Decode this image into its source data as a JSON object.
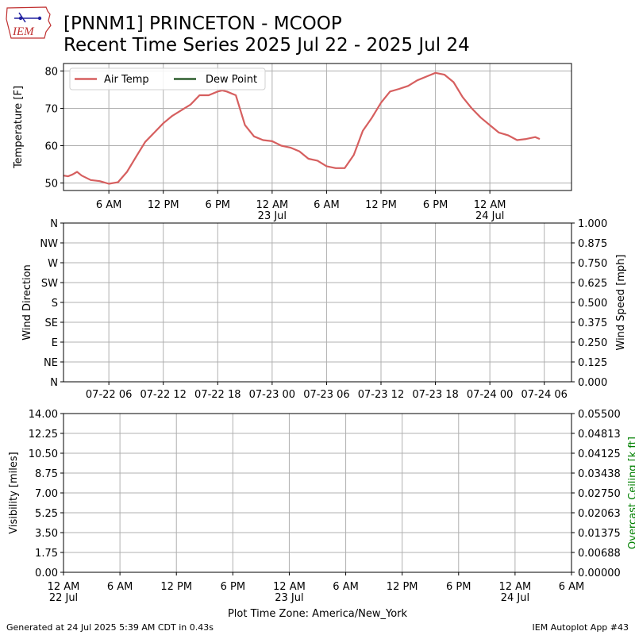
{
  "header": {
    "title_line1": "[PNNM1] PRINCETON - MCOOP",
    "title_line2": "Recent Time Series 2025 Jul 22 - 2025 Jul 24",
    "logo_text": "IEM"
  },
  "footer": {
    "generated": "Generated at 24 Jul 2025 5:39 AM CDT in 0.43s",
    "app": "IEM Autoplot App #43",
    "timezone_label": "Plot Time Zone: America/New_York"
  },
  "colors": {
    "air_temp": "#d65f5f",
    "dew_point": "#2e5e2e",
    "ceiling_axis": "#008000",
    "grid": "#b0b0b0"
  },
  "chart_data": [
    {
      "type": "line",
      "ylabel": "Temperature [F]",
      "ylim": [
        48,
        82
      ],
      "yticks": [
        50,
        60,
        70,
        80
      ],
      "grid": true,
      "legend": "top-left",
      "legend_entries": [
        "Air Temp",
        "Dew Point"
      ],
      "xticks": [
        {
          "hour": 6,
          "label": "6 AM",
          "sub": ""
        },
        {
          "hour": 12,
          "label": "12 PM",
          "sub": ""
        },
        {
          "hour": 18,
          "label": "6 PM",
          "sub": ""
        },
        {
          "hour": 24,
          "label": "12 AM",
          "sub": "23 Jul"
        },
        {
          "hour": 30,
          "label": "6 AM",
          "sub": ""
        },
        {
          "hour": 36,
          "label": "12 PM",
          "sub": ""
        },
        {
          "hour": 42,
          "label": "6 PM",
          "sub": ""
        },
        {
          "hour": 48,
          "label": "12 AM",
          "sub": "24 Jul"
        }
      ],
      "series": [
        {
          "name": "Air Temp",
          "x_hours": [
            1.0,
            1.5,
            2.0,
            2.5,
            3.0,
            4.0,
            5.0,
            6.0,
            7.0,
            8.0,
            9.0,
            10.0,
            11.0,
            12.0,
            13.0,
            14.0,
            15.0,
            16.0,
            17.0,
            18.0,
            18.5,
            19.0,
            20.0,
            21.0,
            22.0,
            23.0,
            24.0,
            25.0,
            26.0,
            27.0,
            28.0,
            29.0,
            30.0,
            31.0,
            32.0,
            33.0,
            34.0,
            35.0,
            36.0,
            37.0,
            38.0,
            39.0,
            40.0,
            41.0,
            42.0,
            43.0,
            44.0,
            45.0,
            46.0,
            47.0,
            48.0,
            49.0,
            50.0,
            51.0,
            52.0,
            53.0,
            53.5
          ],
          "values": [
            52,
            51.8,
            52.3,
            53,
            52,
            50.8,
            50.5,
            49.8,
            50.2,
            53,
            57,
            61,
            63.5,
            66,
            68,
            69.5,
            71,
            73.5,
            73.5,
            74.5,
            74.8,
            74.5,
            73.5,
            65.5,
            62.5,
            61.5,
            61.2,
            60,
            59.5,
            58.5,
            56.5,
            56,
            54.5,
            54,
            54,
            57.5,
            64,
            67.5,
            71.5,
            74.5,
            75.2,
            76,
            77.5,
            78.5,
            79.5,
            79,
            77,
            73,
            70,
            67.5,
            65.5,
            63.5,
            62.8,
            61.5,
            61.8,
            62.3,
            61.8
          ]
        },
        {
          "name": "Dew Point",
          "x_hours": [],
          "values": []
        }
      ]
    },
    {
      "type": "scatter",
      "ylabel": "Wind Direction",
      "ylabel_right": "Wind Speed [mph]",
      "ylim": [
        0,
        360
      ],
      "ylim_right": [
        0,
        1
      ],
      "yticks_left": [
        "N",
        "NE",
        "E",
        "SE",
        "S",
        "SW",
        "W",
        "NW",
        "N"
      ],
      "yticks_right": [
        "0.000",
        "0.125",
        "0.250",
        "0.375",
        "0.500",
        "0.625",
        "0.750",
        "0.875",
        "1.000"
      ],
      "xticks": [
        {
          "hour": 6,
          "label": "07-22 06"
        },
        {
          "hour": 12,
          "label": "07-22 12"
        },
        {
          "hour": 18,
          "label": "07-22 18"
        },
        {
          "hour": 24,
          "label": "07-23 00"
        },
        {
          "hour": 30,
          "label": "07-23 06"
        },
        {
          "hour": 36,
          "label": "07-23 12"
        },
        {
          "hour": 42,
          "label": "07-23 18"
        },
        {
          "hour": 48,
          "label": "07-24 00"
        },
        {
          "hour": 54,
          "label": "07-24 06"
        }
      ],
      "grid": true,
      "series": []
    },
    {
      "type": "line",
      "ylabel": "Visibility [miles]",
      "ylabel_right": "Overcast Ceiling [k ft]",
      "ylim": [
        0,
        14
      ],
      "ylim_right": [
        0,
        0.055
      ],
      "yticks_left": [
        "0.00",
        "1.75",
        "3.50",
        "5.25",
        "7.00",
        "8.75",
        "10.50",
        "12.25",
        "14.00"
      ],
      "yticks_right": [
        "0.00000",
        "0.00688",
        "0.01375",
        "0.02063",
        "0.02750",
        "0.03438",
        "0.04125",
        "0.04813",
        "0.05500"
      ],
      "xticks": [
        {
          "hour": 0,
          "label": "12 AM",
          "sub": "22 Jul"
        },
        {
          "hour": 6,
          "label": "6 AM",
          "sub": ""
        },
        {
          "hour": 12,
          "label": "12 PM",
          "sub": ""
        },
        {
          "hour": 18,
          "label": "6 PM",
          "sub": ""
        },
        {
          "hour": 24,
          "label": "12 AM",
          "sub": "23 Jul"
        },
        {
          "hour": 30,
          "label": "6 AM",
          "sub": ""
        },
        {
          "hour": 36,
          "label": "12 PM",
          "sub": ""
        },
        {
          "hour": 42,
          "label": "6 PM",
          "sub": ""
        },
        {
          "hour": 48,
          "label": "12 AM",
          "sub": "24 Jul"
        },
        {
          "hour": 54,
          "label": "6 AM",
          "sub": ""
        }
      ],
      "grid": true,
      "series": []
    }
  ]
}
